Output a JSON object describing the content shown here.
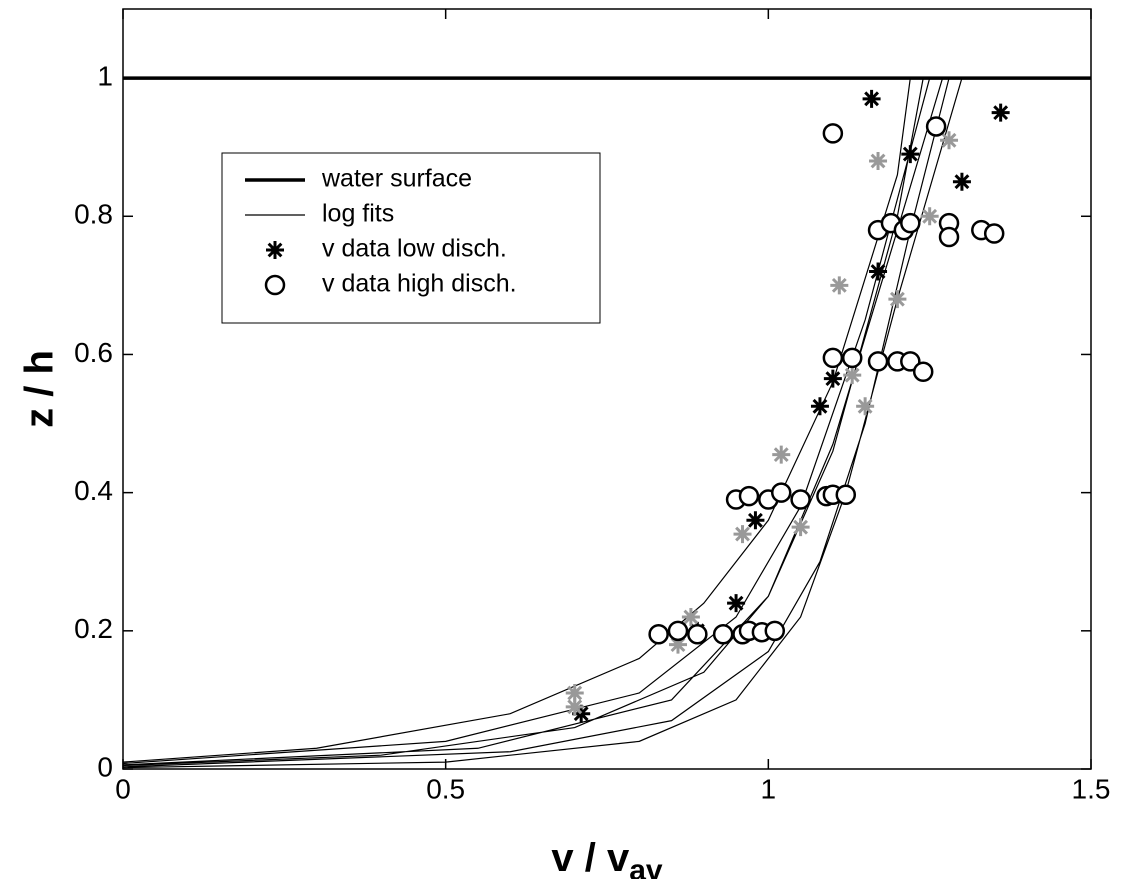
{
  "chart_data": {
    "type": "line",
    "x_label": "v / v",
    "x_label_sub": "av",
    "y_label": "z / h",
    "xlim": [
      0,
      1.5
    ],
    "ylim": [
      0,
      1.1
    ],
    "xticks": [
      0,
      0.5,
      1,
      1.5
    ],
    "yticks": [
      0,
      0.2,
      0.4,
      0.6,
      0.8,
      1
    ],
    "series": [
      {
        "name": "water surface",
        "color": "#000000",
        "marker": "line",
        "width": 3.5,
        "x": [
          0,
          1.5
        ],
        "values": [
          1,
          1
        ]
      },
      {
        "name": "log fits",
        "color": "#000000",
        "marker": "line",
        "width": 1.2,
        "x": [
          0,
          0.3,
          0.6,
          0.8,
          0.9,
          1.0,
          1.1,
          1.2,
          1.22,
          null,
          0,
          0.4,
          0.7,
          0.9,
          1.0,
          1.1,
          1.2,
          1.27,
          null,
          0,
          0.5,
          0.8,
          0.95,
          1.05,
          1.12,
          1.2,
          1.3,
          null,
          0,
          0.5,
          0.8,
          0.95,
          1.05,
          1.15,
          1.25,
          null,
          0,
          0.6,
          0.85,
          1.0,
          1.08,
          1.15,
          1.22,
          1.28,
          null,
          0,
          0.55,
          0.85,
          1.0,
          1.1,
          1.2,
          1.24
        ],
        "values": [
          0.01,
          0.03,
          0.08,
          0.16,
          0.24,
          0.36,
          0.56,
          0.86,
          1.0,
          null,
          0.005,
          0.02,
          0.06,
          0.14,
          0.25,
          0.47,
          0.78,
          1.0,
          null,
          0.002,
          0.01,
          0.04,
          0.1,
          0.22,
          0.4,
          0.68,
          1.0,
          null,
          0.008,
          0.04,
          0.11,
          0.22,
          0.38,
          0.65,
          1.0,
          null,
          0.003,
          0.025,
          0.07,
          0.17,
          0.3,
          0.5,
          0.78,
          1.0,
          null,
          0.006,
          0.03,
          0.1,
          0.25,
          0.46,
          0.8,
          1.0
        ]
      },
      {
        "name": "v data low disch.",
        "color": "#000000",
        "marker": "star",
        "x": [
          1.16,
          1.22,
          1.36,
          1.3,
          1.17,
          1.1,
          1.08,
          1.02,
          0.98,
          0.95,
          0.89,
          0.71,
          1.17,
          1.28,
          1.25,
          1.11,
          1.2,
          1.13,
          1.15,
          1.02,
          0.96,
          1.05,
          0.88,
          0.86,
          0.7,
          0.7
        ],
        "values": [
          0.97,
          0.89,
          0.95,
          0.85,
          0.72,
          0.565,
          0.525,
          0.4,
          0.36,
          0.24,
          0.2,
          0.08,
          0.88,
          0.91,
          0.8,
          0.7,
          0.68,
          0.57,
          0.525,
          0.455,
          0.34,
          0.35,
          0.22,
          0.18,
          0.11,
          0.09
        ],
        "point_colors": [
          "#000000",
          "#000000",
          "#000000",
          "#000000",
          "#000000",
          "#000000",
          "#000000",
          "#000000",
          "#000000",
          "#000000",
          "#000000",
          "#000000",
          "#999999",
          "#999999",
          "#999999",
          "#999999",
          "#999999",
          "#999999",
          "#999999",
          "#999999",
          "#999999",
          "#999999",
          "#999999",
          "#999999",
          "#999999",
          "#999999"
        ]
      },
      {
        "name": "v data high disch.",
        "color": "#000000",
        "marker": "circle",
        "x": [
          1.1,
          1.26,
          1.17,
          1.19,
          1.21,
          1.22,
          1.28,
          1.28,
          1.33,
          1.35,
          1.1,
          1.13,
          1.17,
          1.2,
          1.22,
          1.24,
          0.95,
          0.97,
          1.0,
          1.02,
          1.05,
          1.09,
          1.1,
          1.12,
          0.83,
          0.86,
          0.89,
          0.93,
          0.96,
          0.97,
          0.99,
          1.01
        ],
        "values": [
          0.92,
          0.93,
          0.78,
          0.79,
          0.78,
          0.79,
          0.79,
          0.77,
          0.78,
          0.775,
          0.595,
          0.595,
          0.59,
          0.59,
          0.59,
          0.575,
          0.39,
          0.395,
          0.39,
          0.4,
          0.39,
          0.395,
          0.397,
          0.397,
          0.195,
          0.2,
          0.195,
          0.195,
          0.195,
          0.2,
          0.198,
          0.2
        ]
      }
    ]
  }
}
